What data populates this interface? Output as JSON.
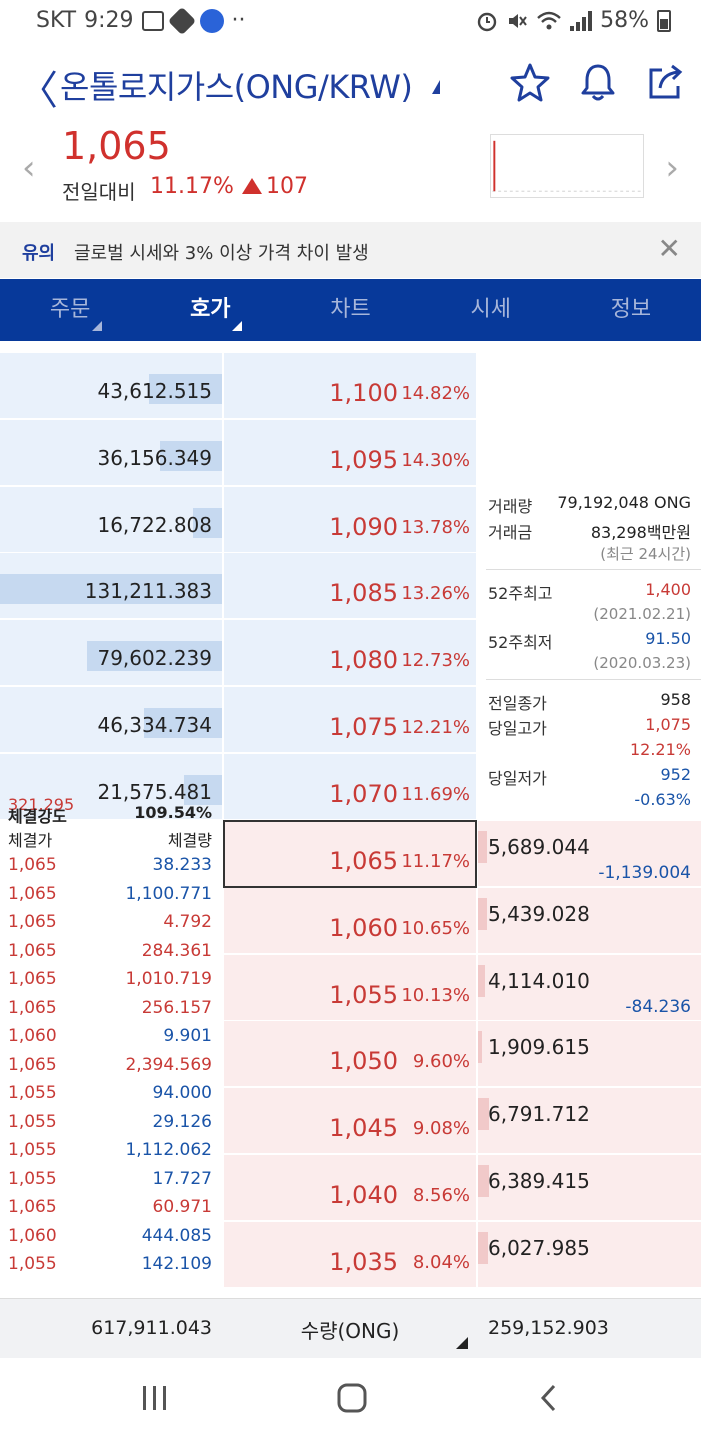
{
  "status_bar": {
    "carrier": "SKT",
    "time": "9:29",
    "battery": "58%"
  },
  "header": {
    "back_glyph": "〈",
    "title": "온톨로지가스(ONG/KRW)"
  },
  "summary": {
    "price": "1,065",
    "change_label": "전일대비",
    "change_rate": "11.17%",
    "change_amount": "107"
  },
  "notice": {
    "tag": "유의",
    "text": "글로벌 시세와 3% 이상 가격 차이 발생",
    "close_glyph": "✕"
  },
  "tabs": [
    {
      "label": "주문",
      "has_sub": true,
      "active": false
    },
    {
      "label": "호가",
      "has_sub": true,
      "active": true
    },
    {
      "label": "차트",
      "has_sub": false,
      "active": false
    },
    {
      "label": "시세",
      "has_sub": false,
      "active": false
    },
    {
      "label": "정보",
      "has_sub": false,
      "active": false
    }
  ],
  "asks": [
    {
      "qty": "43,612.515",
      "price": "1,100",
      "pct": "14.82%",
      "bar_ratio": 0.33
    },
    {
      "qty": "36,156.349",
      "price": "1,095",
      "pct": "14.30%",
      "bar_ratio": 0.28
    },
    {
      "qty": "16,722.808",
      "price": "1,090",
      "pct": "13.78%",
      "bar_ratio": 0.13
    },
    {
      "qty": "131,211.383",
      "price": "1,085",
      "pct": "13.26%",
      "bar_ratio": 1.0
    },
    {
      "qty": "79,602.239",
      "price": "1,080",
      "pct": "12.73%",
      "bar_ratio": 0.61
    },
    {
      "qty": "46,334.734",
      "price": "1,075",
      "pct": "12.21%",
      "bar_ratio": 0.35
    },
    {
      "qty": "21,575.481",
      "price": "1,070",
      "pct": "11.69%",
      "bar_ratio": 0.17
    }
  ],
  "bids": [
    {
      "qty": "5,689.044",
      "price": "1,065",
      "pct": "11.17%",
      "delta": "-1,139.004",
      "bar_ratio": 0.04
    },
    {
      "qty": "5,439.028",
      "price": "1,060",
      "pct": "10.65%",
      "delta": "",
      "bar_ratio": 0.04
    },
    {
      "qty": "4,114.010",
      "price": "1,055",
      "pct": "10.13%",
      "delta": "-84.236",
      "bar_ratio": 0.03
    },
    {
      "qty": "1,909.615",
      "price": "1,050",
      "pct": "9.60%",
      "delta": "",
      "bar_ratio": 0.015
    },
    {
      "qty": "6,791.712",
      "price": "1,045",
      "pct": "9.08%",
      "delta": "",
      "bar_ratio": 0.05
    },
    {
      "qty": "6,389.415",
      "price": "1,040",
      "pct": "8.56%",
      "delta": "",
      "bar_ratio": 0.05
    },
    {
      "qty": "6,027.985",
      "price": "1,035",
      "pct": "8.04%",
      "delta": "",
      "bar_ratio": 0.045
    }
  ],
  "info": {
    "volume_label": "거래량",
    "volume_value": "79,192,048 ONG",
    "amount_label": "거래금",
    "amount_value": "83,298백만원",
    "period_note": "(최근 24시간)",
    "high52_label": "52주최고",
    "high52_value": "1,400",
    "high52_date": "(2021.02.21)",
    "low52_label": "52주최저",
    "low52_value": "91.50",
    "low52_date": "(2020.03.23)",
    "prev_close_label": "전일종가",
    "prev_close_value": "958",
    "day_high_label": "당일고가",
    "day_high_value": "1,075",
    "day_high_pct": "12.21%",
    "day_low_label": "당일저가",
    "day_low_value": "952",
    "day_low_pct": "-0.63%"
  },
  "trades": {
    "side_value": "321.295",
    "strength_label": "체결강도",
    "strength_value": "109.54%",
    "price_header": "체결가",
    "qty_header": "체결량",
    "rows": [
      {
        "price": "1,065",
        "qty": "38.233",
        "side": "buy"
      },
      {
        "price": "1,065",
        "qty": "1,100.771",
        "side": "buy"
      },
      {
        "price": "1,065",
        "qty": "4.792",
        "side": "sell"
      },
      {
        "price": "1,065",
        "qty": "284.361",
        "side": "sell"
      },
      {
        "price": "1,065",
        "qty": "1,010.719",
        "side": "sell"
      },
      {
        "price": "1,065",
        "qty": "256.157",
        "side": "sell"
      },
      {
        "price": "1,060",
        "qty": "9.901",
        "side": "buy"
      },
      {
        "price": "1,065",
        "qty": "2,394.569",
        "side": "sell"
      },
      {
        "price": "1,055",
        "qty": "94.000",
        "side": "buy"
      },
      {
        "price": "1,055",
        "qty": "29.126",
        "side": "buy"
      },
      {
        "price": "1,055",
        "qty": "1,112.062",
        "side": "buy"
      },
      {
        "price": "1,055",
        "qty": "17.727",
        "side": "buy"
      },
      {
        "price": "1,065",
        "qty": "60.971",
        "side": "sell"
      },
      {
        "price": "1,060",
        "qty": "444.085",
        "side": "buy"
      },
      {
        "price": "1,055",
        "qty": "142.109",
        "side": "buy"
      }
    ]
  },
  "totals": {
    "ask_total": "617,911.043",
    "unit_label": "수량(ONG)",
    "bid_total": "259,152.903"
  },
  "colors": {
    "brand": "#07399a",
    "up": "#d0312d",
    "down": "#1a54a8",
    "ask_bg": "#e9f1fb",
    "bid_bg": "#fbecec"
  }
}
